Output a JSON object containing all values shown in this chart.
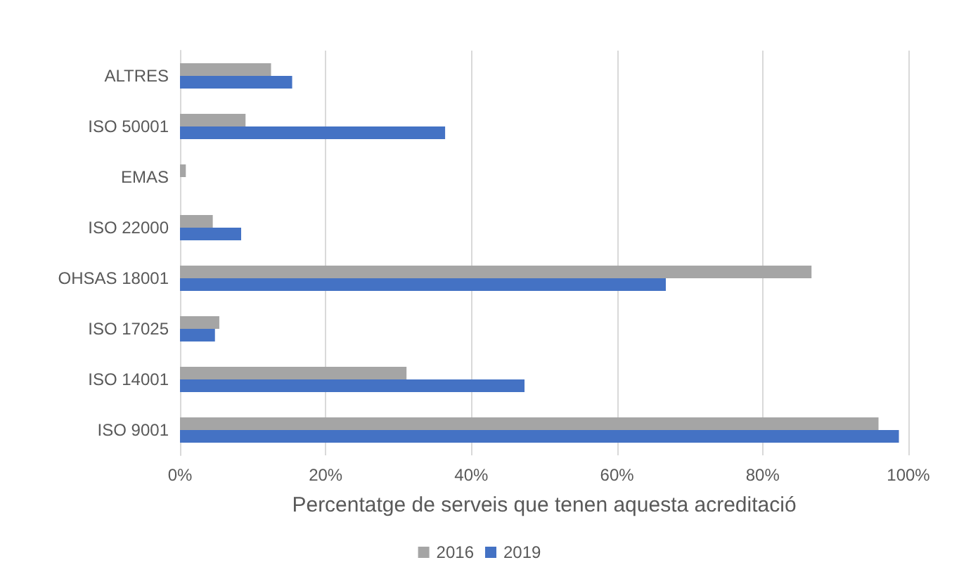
{
  "chart_data": {
    "type": "bar",
    "orientation": "horizontal",
    "xlabel": "Percentatge de serveis que tenen aquesta acreditació",
    "categories": [
      "ALTRES",
      "ISO 50001",
      "EMAS",
      "ISO 22000",
      "OHSAS 18001",
      "ISO 17025",
      "ISO 14001",
      "ISO 9001"
    ],
    "series": [
      {
        "name": "2016",
        "color": "#a5a5a5",
        "values": [
          12.5,
          9,
          0.8,
          4.5,
          86.7,
          5.4,
          31.1,
          95.9
        ]
      },
      {
        "name": "2019",
        "color": "#4472c4",
        "values": [
          15.4,
          36.4,
          0,
          8.4,
          66.7,
          4.8,
          47.3,
          98.7
        ]
      }
    ],
    "xlim": [
      0,
      100
    ],
    "xticks": [
      {
        "value": 0,
        "label": "0%"
      },
      {
        "value": 20,
        "label": "20%"
      },
      {
        "value": 40,
        "label": "40%"
      },
      {
        "value": 60,
        "label": "60%"
      },
      {
        "value": 80,
        "label": "80%"
      },
      {
        "value": 100,
        "label": "100%"
      }
    ],
    "grid": "x",
    "legend": "bottom"
  }
}
